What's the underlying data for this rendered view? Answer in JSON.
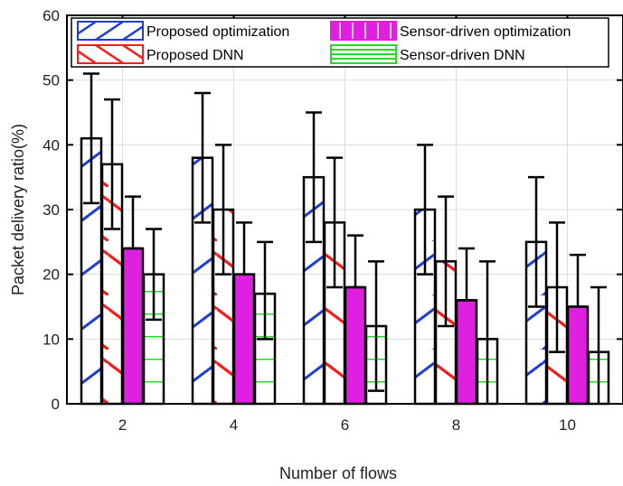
{
  "chart_data": {
    "type": "bar",
    "xlabel": "Number of flows",
    "ylabel": "Packet delivery ratio(%)",
    "categories": [
      "2",
      "4",
      "6",
      "8",
      "10"
    ],
    "ylim": [
      0,
      60
    ],
    "yticks": [
      0,
      10,
      20,
      30,
      40,
      50,
      60
    ],
    "grid": true,
    "legend_position": "top",
    "series": [
      {
        "name": "Proposed optimization",
        "values": [
          41,
          38,
          35,
          30,
          25
        ],
        "error_low": [
          31,
          28,
          25,
          20,
          15
        ],
        "error_high": [
          51,
          48,
          45,
          40,
          35
        ],
        "color": "#1f3fd0",
        "pattern": "diagonal-up"
      },
      {
        "name": "Proposed DNN",
        "values": [
          37,
          30,
          28,
          22,
          18
        ],
        "error_low": [
          27,
          20,
          18,
          12,
          8
        ],
        "error_high": [
          47,
          40,
          38,
          32,
          28
        ],
        "color": "#ff1a1a",
        "pattern": "diagonal-down"
      },
      {
        "name": "Sensor-driven optimization",
        "values": [
          24,
          20,
          18,
          16,
          15
        ],
        "error_low": [
          24,
          20,
          18,
          16,
          15
        ],
        "error_high": [
          32,
          28,
          26,
          24,
          23
        ],
        "color": "#e020e0",
        "pattern": "solid"
      },
      {
        "name": "Sensor-driven DNN",
        "values": [
          20,
          17,
          12,
          10,
          8
        ],
        "error_low": [
          13,
          10,
          2,
          0,
          0
        ],
        "error_high": [
          27,
          25,
          22,
          22,
          18
        ],
        "color": "#22dd22",
        "pattern": "horizontal"
      }
    ]
  }
}
